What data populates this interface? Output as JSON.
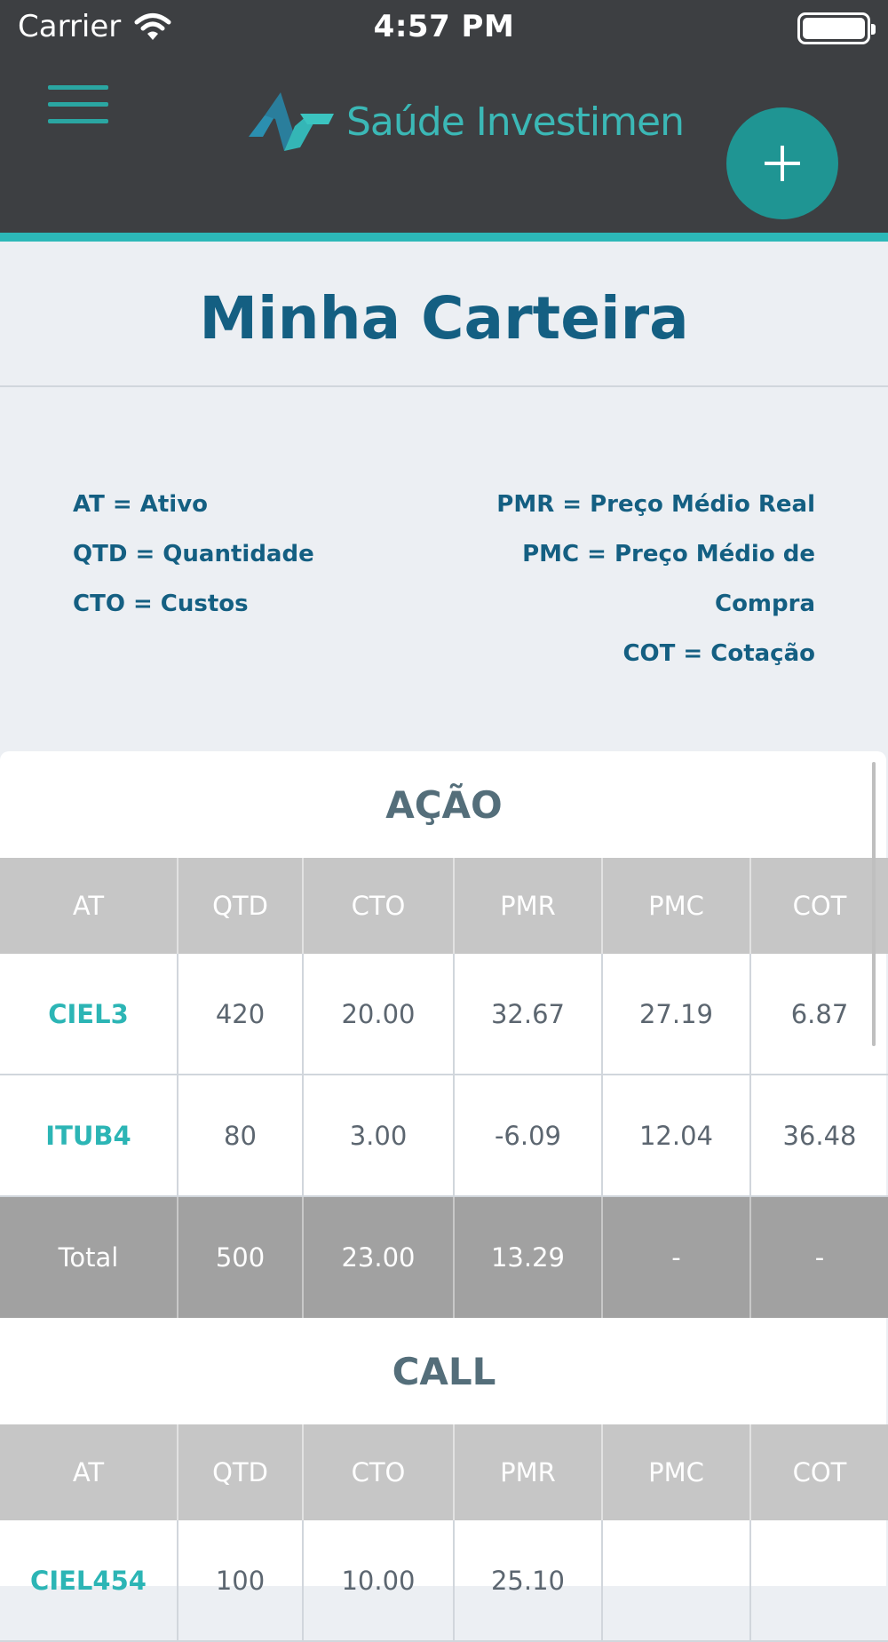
{
  "status_bar": {
    "carrier": "Carrier",
    "time": "4:57 PM"
  },
  "header": {
    "logo_text": "Saúde Investimen"
  },
  "page": {
    "title": "Minha Carteira"
  },
  "legend": {
    "left": [
      "AT = Ativo",
      "QTD = Quantidade",
      "CTO = Custos"
    ],
    "right": [
      "PMR = Preço Médio Real",
      "PMC = Preço Médio de",
      "Compra",
      "COT = Cotação"
    ]
  },
  "columns": [
    "AT",
    "QTD",
    "CTO",
    "PMR",
    "PMC",
    "COT"
  ],
  "sections": [
    {
      "title": "AÇÃO",
      "rows": [
        [
          "CIEL3",
          "420",
          "20.00",
          "32.67",
          "27.19",
          "6.87"
        ],
        [
          "ITUB4",
          "80",
          "3.00",
          "-6.09",
          "12.04",
          "36.48"
        ]
      ],
      "total": [
        "Total",
        "500",
        "23.00",
        "13.29",
        "-",
        "-"
      ]
    },
    {
      "title": "CALL",
      "rows": [
        [
          "CIEL454",
          "100",
          "10.00",
          "25.10",
          "",
          ""
        ]
      ]
    }
  ],
  "colors": {
    "accent": "#2cb8b8",
    "title": "#145f82",
    "asset": "#2cb5b5",
    "header_bg": "#3d3f42"
  }
}
